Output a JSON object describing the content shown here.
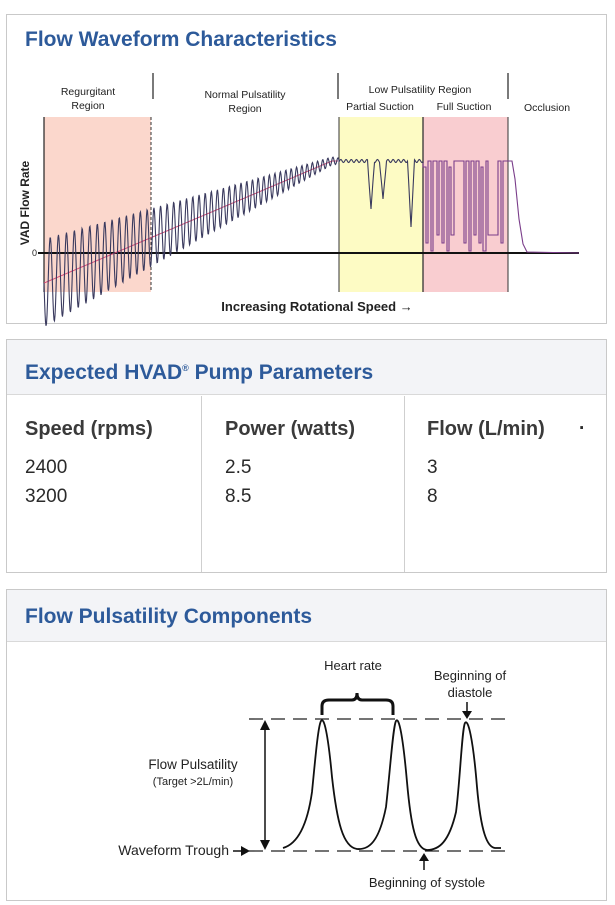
{
  "panels": {
    "waveform": {
      "title": "Flow Waveform Characteristics",
      "regions": {
        "regurgitant": [
          "Regurgitant",
          "Region"
        ],
        "normal": [
          "Normal Pulsatility",
          "Region"
        ],
        "low": "Low Pulsatility Region",
        "partial": "Partial Suction",
        "full": "Full Suction",
        "occlusion": "Occlusion"
      },
      "ylabel": "VAD Flow Rate",
      "zero_label": "0",
      "xlabel": "Increasing Rotational Speed →",
      "colors": {
        "regurgitant": "#fbd7cc",
        "low": "#fdfbc4",
        "full": "#f9cdd0",
        "trace": "#3a3a5e",
        "mean": "#d84b78"
      }
    },
    "parameters": {
      "title_main": "Expected HVAD",
      "title_reg": "®",
      "title_tail": " Pump Parameters",
      "headers": [
        "Speed (rpms)",
        "Power (watts)",
        "Flow (L/min)"
      ],
      "stray_mark": "·",
      "rows": [
        [
          "2400",
          "2.5",
          "3"
        ],
        [
          "3200",
          "8.5",
          "8"
        ]
      ]
    },
    "pulsatility": {
      "title": "Flow Pulsatility Components",
      "heart_rate": "Heart rate",
      "diastole": [
        "Beginning of",
        "diastole"
      ],
      "flow_pulsatility": "Flow Pulsatility",
      "target": "(Target >2L/min)",
      "trough": "Waveform Trough",
      "systole": "Beginning of systole"
    }
  }
}
